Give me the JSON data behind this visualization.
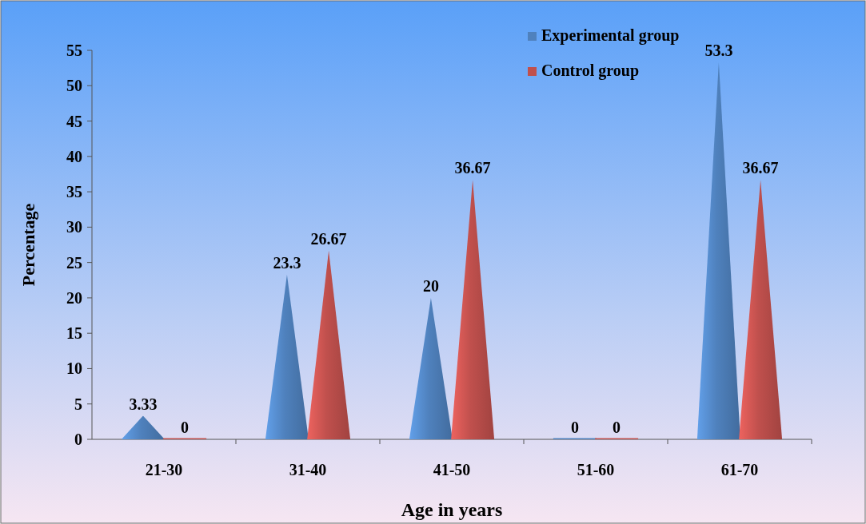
{
  "chart_data": {
    "type": "bar",
    "xlabel": "Age in years",
    "ylabel": "Percentage",
    "categories": [
      "21-30",
      "31-40",
      "41-50",
      "51-60",
      "61-70"
    ],
    "series": [
      {
        "name": "Experimental group",
        "color": "#4f81bd",
        "values": [
          3.33,
          23.3,
          20,
          0,
          53.3
        ]
      },
      {
        "name": "Control group",
        "color": "#c0504d",
        "values": [
          0,
          26.67,
          36.67,
          0,
          36.67
        ]
      }
    ],
    "ylim": [
      0,
      55
    ],
    "yticks": [
      0,
      5,
      10,
      15,
      20,
      25,
      30,
      35,
      40,
      45,
      50,
      55
    ],
    "data_labels": true,
    "legend": "top right",
    "grid": false
  }
}
